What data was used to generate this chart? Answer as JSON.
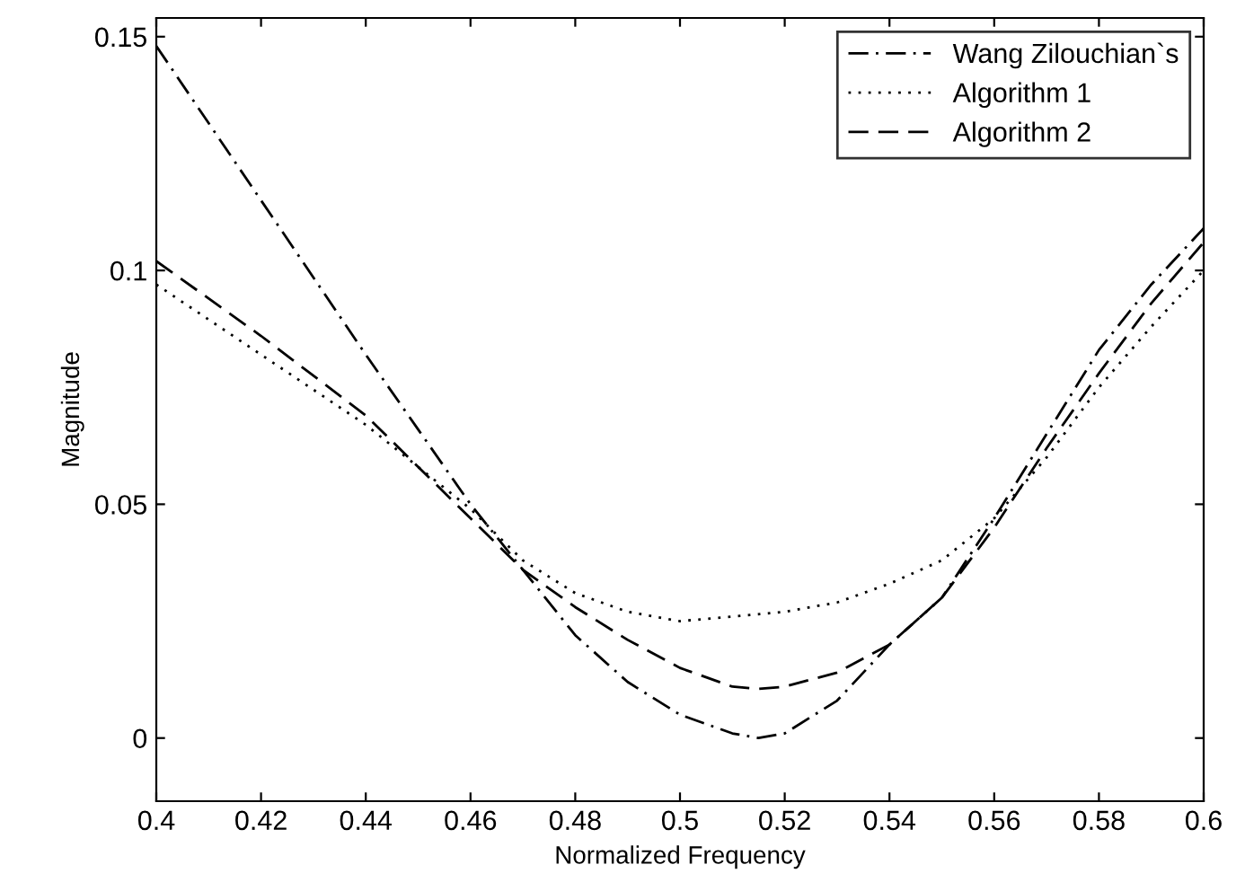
{
  "chart_data": {
    "type": "line",
    "xlabel": "Normalized Frequency",
    "ylabel": "Magnitude",
    "xlim": [
      0.4,
      0.6
    ],
    "xticks": [
      0.4,
      0.42,
      0.44,
      0.46,
      0.48,
      0.5,
      0.52,
      0.54,
      0.56,
      0.58,
      0.6
    ],
    "ylim": [
      -0.0135,
      0.154
    ],
    "yticks": [
      0,
      0.05,
      0.1,
      0.15
    ],
    "grid": false,
    "legend": "top right",
    "series": [
      {
        "name": "Wang Zilouchian`s",
        "color": "#000000",
        "line_style": "dashdot",
        "x": [
          0.4,
          0.42,
          0.44,
          0.45,
          0.46,
          0.47,
          0.48,
          0.49,
          0.5,
          0.51,
          0.515,
          0.52,
          0.53,
          0.54,
          0.55,
          0.56,
          0.57,
          0.58,
          0.59,
          0.6
        ],
        "values": [
          0.148,
          0.115,
          0.082,
          0.066,
          0.05,
          0.036,
          0.022,
          0.012,
          0.005,
          0.001,
          0.0,
          0.001,
          0.008,
          0.02,
          0.03,
          0.047,
          0.065,
          0.083,
          0.097,
          0.109
        ]
      },
      {
        "name": "Algorithm 1",
        "color": "#000000",
        "line_style": "dotted",
        "x": [
          0.4,
          0.42,
          0.44,
          0.46,
          0.47,
          0.48,
          0.49,
          0.5,
          0.51,
          0.52,
          0.53,
          0.54,
          0.55,
          0.56,
          0.57,
          0.58,
          0.59,
          0.6
        ],
        "values": [
          0.097,
          0.082,
          0.067,
          0.049,
          0.038,
          0.031,
          0.027,
          0.025,
          0.026,
          0.027,
          0.029,
          0.033,
          0.038,
          0.047,
          0.06,
          0.075,
          0.088,
          0.1
        ]
      },
      {
        "name": "Algorithm 2",
        "color": "#000000",
        "line_style": "dashed",
        "x": [
          0.4,
          0.42,
          0.44,
          0.46,
          0.47,
          0.48,
          0.49,
          0.5,
          0.51,
          0.515,
          0.52,
          0.53,
          0.54,
          0.55,
          0.56,
          0.57,
          0.58,
          0.59,
          0.6
        ],
        "values": [
          0.102,
          0.086,
          0.069,
          0.047,
          0.036,
          0.028,
          0.021,
          0.015,
          0.011,
          0.0105,
          0.011,
          0.014,
          0.02,
          0.03,
          0.045,
          0.062,
          0.078,
          0.093,
          0.106
        ]
      }
    ]
  }
}
